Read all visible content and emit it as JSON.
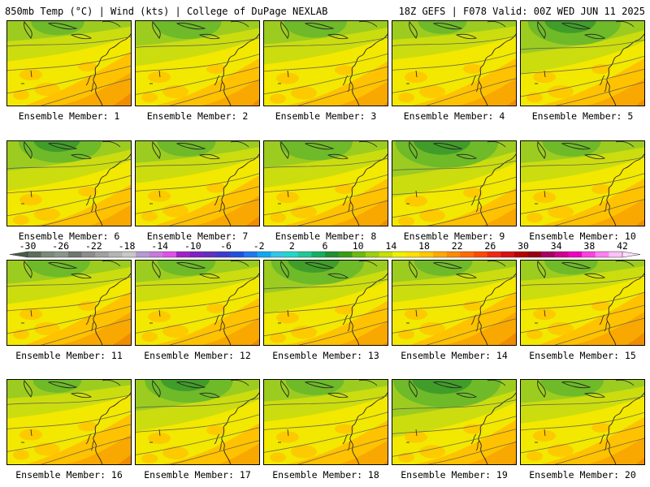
{
  "header": {
    "left": "850mb Temp (°C) | Wind (kts) | College of DuPage NEXLAB",
    "right": "18Z GEFS | F078 Valid: 00Z WED JUN 11 2025"
  },
  "members": [
    {
      "label": "Ensemble Member: 1",
      "green": 0.3,
      "warm": 0.55
    },
    {
      "label": "Ensemble Member: 2",
      "green": 0.45,
      "warm": 0.45
    },
    {
      "label": "Ensemble Member: 3",
      "green": 0.4,
      "warm": 0.4
    },
    {
      "label": "Ensemble Member: 4",
      "green": 0.25,
      "warm": 0.45
    },
    {
      "label": "Ensemble Member: 5",
      "green": 0.7,
      "warm": 0.45
    },
    {
      "label": "Ensemble Member: 6",
      "green": 0.6,
      "warm": 0.35
    },
    {
      "label": "Ensemble Member: 7",
      "green": 0.35,
      "warm": 0.5
    },
    {
      "label": "Ensemble Member: 8",
      "green": 0.5,
      "warm": 0.45
    },
    {
      "label": "Ensemble Member: 9",
      "green": 0.8,
      "warm": 0.3
    },
    {
      "label": "Ensemble Member: 10",
      "green": 0.35,
      "warm": 0.45
    },
    {
      "label": "Ensemble Member: 11",
      "green": 0.4,
      "warm": 0.55
    },
    {
      "label": "Ensemble Member: 12",
      "green": 0.35,
      "warm": 0.45
    },
    {
      "label": "Ensemble Member: 13",
      "green": 0.7,
      "warm": 0.4
    },
    {
      "label": "Ensemble Member: 14",
      "green": 0.35,
      "warm": 0.55
    },
    {
      "label": "Ensemble Member: 15",
      "green": 0.3,
      "warm": 0.55
    },
    {
      "label": "Ensemble Member: 16",
      "green": 0.25,
      "warm": 0.5
    },
    {
      "label": "Ensemble Member: 17",
      "green": 0.65,
      "warm": 0.35
    },
    {
      "label": "Ensemble Member: 18",
      "green": 0.35,
      "warm": 0.4
    },
    {
      "label": "Ensemble Member: 19",
      "green": 0.85,
      "warm": 0.4
    },
    {
      "label": "Ensemble Member: 20",
      "green": 0.4,
      "warm": 0.45
    }
  ],
  "colorbar": {
    "labels": [
      "-30",
      "-26",
      "-22",
      "-18",
      "-14",
      "-10",
      "-6",
      "-2",
      "2",
      "6",
      "10",
      "14",
      "18",
      "22",
      "26",
      "30",
      "34",
      "38",
      "42"
    ],
    "colors": [
      "#5a6e5a",
      "#7a8a7a",
      "#8a968c",
      "#6e766e",
      "#8c8c8c",
      "#a0a0a0",
      "#b4b4b4",
      "#c8c8c8",
      "#b49ad2",
      "#c878dc",
      "#e050e8",
      "#a020c8",
      "#8020c8",
      "#6030c0",
      "#3a3ad0",
      "#2050e0",
      "#1e78f0",
      "#10a8f0",
      "#30c8e8",
      "#20d8c8",
      "#20c898",
      "#10b060",
      "#209030",
      "#3a9e10",
      "#6cba10",
      "#9ad010",
      "#c8e000",
      "#f0f000",
      "#ffe000",
      "#ffc800",
      "#ffa800",
      "#ff8a00",
      "#ff6a00",
      "#ff4a00",
      "#f02a10",
      "#d81010",
      "#b80000",
      "#980010",
      "#a80060",
      "#d00090",
      "#f000c0",
      "#ff40e0",
      "#ff80f0",
      "#ffc0f8"
    ],
    "under_color": "#4a5a4a",
    "over_color": "#ffe0ff"
  },
  "palette": {
    "dark_green": "#3c9a2a",
    "green": "#6cb82a",
    "light_green": "#9ccc20",
    "yellow_green": "#c8dc10",
    "yellow": "#f2e800",
    "light_orange": "#ffc200",
    "orange": "#f8a800",
    "dark_orange": "#f08c00"
  }
}
